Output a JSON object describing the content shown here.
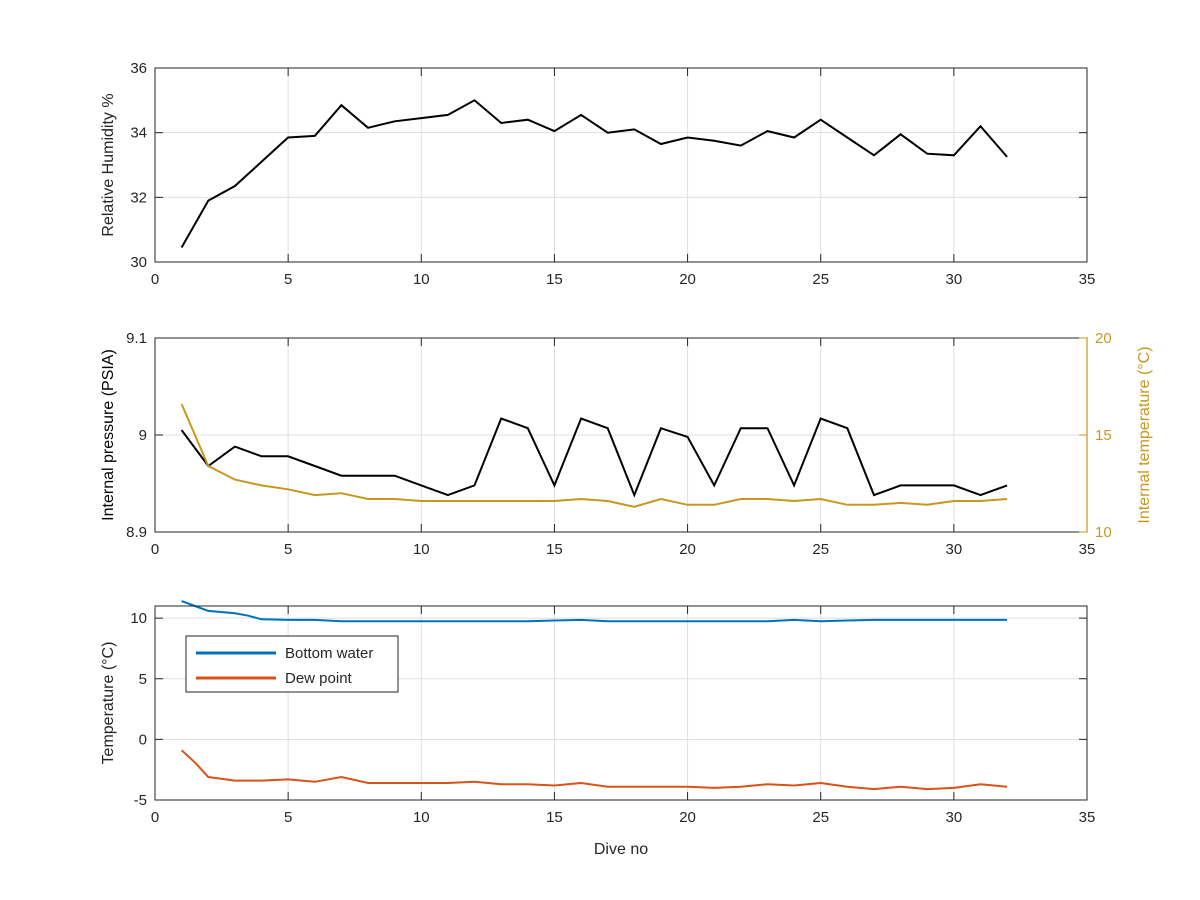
{
  "chart_data": [
    {
      "type": "line",
      "title": "",
      "xlabel": "",
      "ylabel": "Relative Humidity %",
      "xlim": [
        0,
        35
      ],
      "ylim": [
        30,
        36
      ],
      "xticks": [
        0,
        5,
        10,
        15,
        20,
        25,
        30,
        35
      ],
      "yticks": [
        30,
        32,
        34,
        36
      ],
      "grid": true,
      "legend": null,
      "x": [
        1,
        2,
        3,
        4,
        5,
        6,
        7,
        8,
        9,
        10,
        11,
        12,
        13,
        14,
        15,
        16,
        17,
        18,
        19,
        20,
        21,
        22,
        23,
        24,
        25,
        26,
        27,
        28,
        29,
        30,
        31,
        32
      ],
      "series": [
        {
          "color": "#000000",
          "values": [
            30.45,
            31.9,
            32.35,
            33.1,
            33.85,
            33.9,
            34.85,
            34.15,
            34.35,
            34.45,
            34.55,
            35.0,
            34.3,
            34.4,
            34.05,
            34.55,
            34.0,
            34.1,
            33.65,
            33.85,
            33.75,
            33.6,
            34.05,
            33.85,
            34.4,
            33.85,
            33.3,
            33.95,
            33.35,
            33.3,
            34.2,
            33.25
          ]
        }
      ]
    },
    {
      "type": "line",
      "title": "",
      "xlabel": "",
      "ylabel": "Internal pressure (PSIA)",
      "y2label": "Internal temperature (°C)",
      "xlim": [
        0,
        35
      ],
      "ylim": [
        8.9,
        9.1
      ],
      "y2lim": [
        10,
        20
      ],
      "xticks": [
        0,
        5,
        10,
        15,
        20,
        25,
        30,
        35
      ],
      "yticks": [
        8.9,
        9,
        9.1
      ],
      "ytick_labels": [
        "8.9",
        "9",
        "9.1"
      ],
      "y2ticks": [
        10,
        15,
        20
      ],
      "grid": true,
      "legend": null,
      "x": [
        1,
        2,
        3,
        4,
        5,
        6,
        7,
        8,
        9,
        10,
        11,
        12,
        13,
        14,
        15,
        16,
        17,
        18,
        19,
        20,
        21,
        22,
        23,
        24,
        25,
        26,
        27,
        28,
        29,
        30,
        31,
        32
      ],
      "series": [
        {
          "axis": "left",
          "color": "#000000",
          "values": [
            9.005,
            8.968,
            8.988,
            8.978,
            8.978,
            8.968,
            8.958,
            8.958,
            8.958,
            8.948,
            8.938,
            8.948,
            9.017,
            9.007,
            8.948,
            9.017,
            9.007,
            8.938,
            9.007,
            8.998,
            8.948,
            9.007,
            9.007,
            8.948,
            9.017,
            9.007,
            8.938,
            8.948,
            8.948,
            8.948,
            8.938,
            8.948
          ]
        },
        {
          "axis": "right",
          "color": "#C8971F",
          "values": [
            16.6,
            13.4,
            12.7,
            12.4,
            12.2,
            11.9,
            12.0,
            11.7,
            11.7,
            11.6,
            11.6,
            11.6,
            11.6,
            11.6,
            11.6,
            11.7,
            11.6,
            11.3,
            11.7,
            11.4,
            11.4,
            11.7,
            11.7,
            11.6,
            11.7,
            11.4,
            11.4,
            11.5,
            11.4,
            11.6,
            11.6,
            11.7
          ]
        }
      ]
    },
    {
      "type": "line",
      "title": "",
      "xlabel": "Dive no",
      "ylabel": "Temperature (°C)",
      "xlim": [
        0,
        35
      ],
      "ylim": [
        -5,
        11
      ],
      "xticks": [
        0,
        5,
        10,
        15,
        20,
        25,
        30,
        35
      ],
      "yticks": [
        -5,
        0,
        5,
        10
      ],
      "grid": true,
      "legend": "upper-left",
      "x": [
        1,
        1.5,
        2,
        3,
        3.5,
        4,
        5,
        6,
        7,
        8,
        9,
        10,
        11,
        12,
        13,
        14,
        15,
        16,
        17,
        18,
        19,
        20,
        21,
        22,
        23,
        24,
        25,
        26,
        27,
        28,
        29,
        30,
        31,
        32
      ],
      "series": [
        {
          "name": "Bottom water",
          "color": "#0072BD",
          "values": [
            11.4,
            11.0,
            10.6,
            10.4,
            10.2,
            9.9,
            9.85,
            9.85,
            9.75,
            9.75,
            9.75,
            9.75,
            9.75,
            9.75,
            9.75,
            9.75,
            9.8,
            9.85,
            9.75,
            9.75,
            9.75,
            9.75,
            9.75,
            9.75,
            9.75,
            9.85,
            9.75,
            9.8,
            9.85,
            9.85,
            9.85,
            9.85,
            9.85,
            9.85
          ]
        },
        {
          "name": "Dew point",
          "color": "#D95319",
          "values": [
            -0.9,
            -1.9,
            -3.1,
            -3.4,
            -3.4,
            -3.4,
            -3.3,
            -3.5,
            -3.1,
            -3.6,
            -3.6,
            -3.6,
            -3.6,
            -3.5,
            -3.7,
            -3.7,
            -3.8,
            -3.6,
            -3.9,
            -3.9,
            -3.9,
            -3.9,
            -4.0,
            -3.9,
            -3.7,
            -3.8,
            -3.6,
            -3.9,
            -4.1,
            -3.9,
            -4.1,
            -4.0,
            -3.7,
            -3.9
          ]
        }
      ]
    }
  ]
}
